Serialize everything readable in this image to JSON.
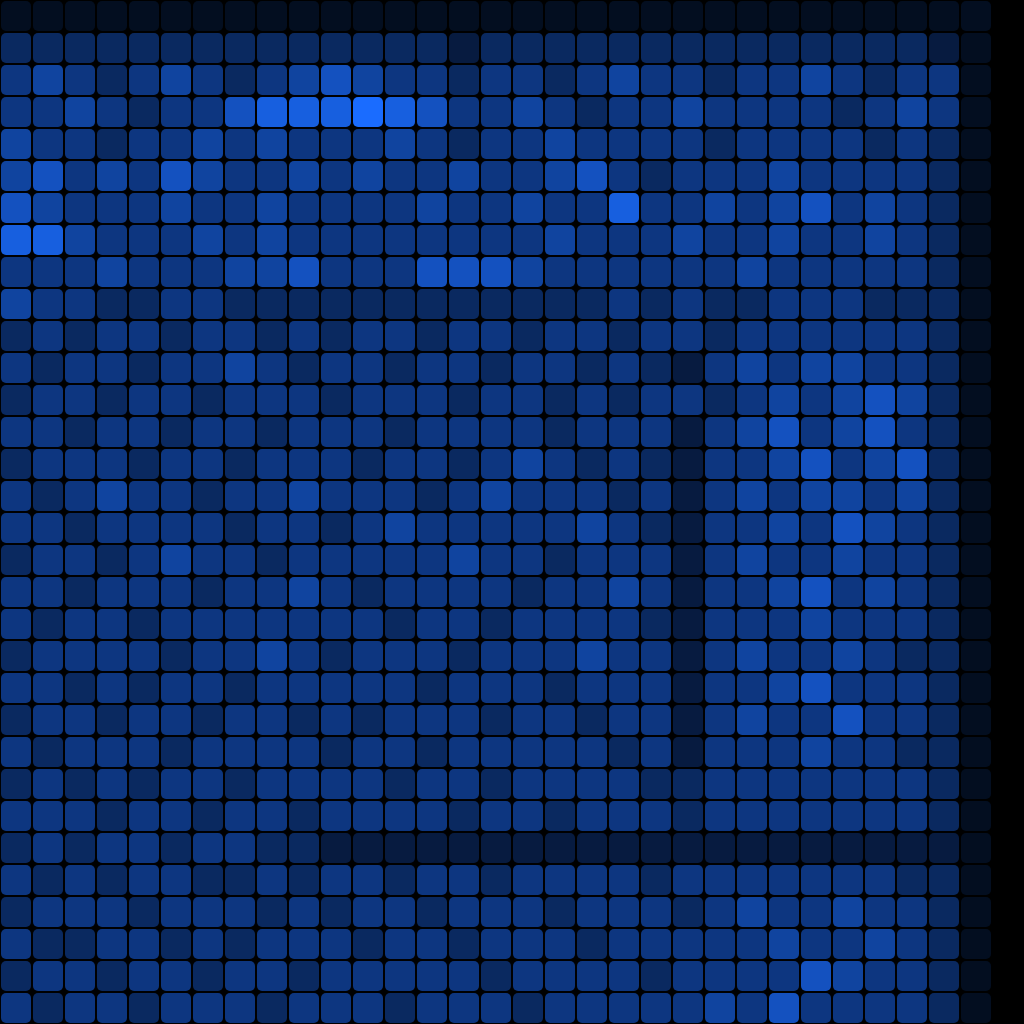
{
  "chart_data": {
    "type": "heatmap",
    "tick_labels": false,
    "cells": [
      [
        1,
        1,
        1,
        1,
        1,
        1,
        1,
        1,
        1,
        1,
        1,
        1,
        1,
        1,
        1,
        1,
        1,
        1,
        1,
        1,
        1,
        1,
        1,
        1,
        1,
        1,
        1,
        1,
        1,
        1,
        1,
        0
      ],
      [
        3,
        3,
        3,
        3,
        3,
        3,
        3,
        3,
        3,
        3,
        3,
        3,
        3,
        3,
        2,
        3,
        3,
        3,
        3,
        3,
        3,
        3,
        3,
        3,
        3,
        3,
        3,
        3,
        3,
        2,
        1,
        0
      ],
      [
        4,
        5,
        4,
        3,
        4,
        5,
        4,
        3,
        4,
        5,
        6,
        5,
        4,
        4,
        3,
        4,
        4,
        3,
        4,
        5,
        4,
        4,
        3,
        4,
        4,
        5,
        4,
        3,
        4,
        4,
        1,
        0
      ],
      [
        4,
        4,
        5,
        4,
        3,
        4,
        4,
        6,
        7,
        7,
        7,
        8,
        7,
        6,
        4,
        4,
        5,
        4,
        3,
        4,
        4,
        5,
        4,
        4,
        4,
        4,
        3,
        4,
        5,
        4,
        1,
        0
      ],
      [
        5,
        4,
        4,
        3,
        4,
        4,
        5,
        4,
        5,
        4,
        4,
        4,
        5,
        4,
        3,
        4,
        4,
        5,
        4,
        4,
        4,
        4,
        3,
        4,
        4,
        4,
        4,
        3,
        4,
        3,
        1,
        0
      ],
      [
        5,
        6,
        4,
        5,
        4,
        6,
        5,
        4,
        4,
        5,
        4,
        5,
        4,
        4,
        5,
        4,
        4,
        5,
        6,
        4,
        3,
        4,
        4,
        4,
        5,
        4,
        4,
        4,
        4,
        3,
        1,
        0
      ],
      [
        6,
        5,
        4,
        4,
        4,
        5,
        4,
        4,
        5,
        4,
        4,
        4,
        4,
        5,
        4,
        4,
        5,
        4,
        4,
        7,
        4,
        4,
        5,
        4,
        5,
        6,
        4,
        5,
        4,
        3,
        1,
        0
      ],
      [
        7,
        7,
        5,
        4,
        4,
        4,
        5,
        4,
        5,
        4,
        4,
        4,
        4,
        4,
        4,
        4,
        4,
        5,
        4,
        4,
        4,
        5,
        4,
        4,
        5,
        4,
        4,
        5,
        4,
        3,
        1,
        0
      ],
      [
        4,
        4,
        4,
        5,
        4,
        4,
        4,
        5,
        5,
        6,
        4,
        4,
        4,
        6,
        6,
        6,
        5,
        4,
        4,
        4,
        4,
        4,
        4,
        5,
        4,
        4,
        4,
        4,
        4,
        3,
        1,
        0
      ],
      [
        5,
        4,
        4,
        3,
        3,
        4,
        4,
        3,
        3,
        3,
        3,
        3,
        3,
        3,
        3,
        3,
        3,
        3,
        3,
        4,
        3,
        4,
        3,
        3,
        4,
        4,
        4,
        3,
        3,
        3,
        1,
        0
      ],
      [
        3,
        4,
        3,
        4,
        4,
        3,
        4,
        4,
        3,
        4,
        3,
        4,
        4,
        3,
        4,
        4,
        3,
        4,
        4,
        3,
        4,
        4,
        3,
        4,
        4,
        4,
        4,
        4,
        4,
        3,
        1,
        0
      ],
      [
        4,
        3,
        4,
        4,
        3,
        4,
        4,
        5,
        4,
        3,
        4,
        4,
        3,
        4,
        4,
        3,
        4,
        4,
        3,
        4,
        3,
        2,
        4,
        5,
        4,
        5,
        5,
        4,
        4,
        3,
        1,
        0
      ],
      [
        3,
        4,
        4,
        3,
        4,
        4,
        3,
        4,
        4,
        4,
        3,
        4,
        4,
        4,
        3,
        4,
        4,
        3,
        4,
        3,
        4,
        4,
        3,
        4,
        5,
        4,
        5,
        6,
        5,
        3,
        1,
        0
      ],
      [
        4,
        4,
        3,
        4,
        4,
        3,
        4,
        4,
        3,
        4,
        4,
        4,
        3,
        4,
        4,
        4,
        4,
        3,
        4,
        4,
        4,
        2,
        4,
        5,
        6,
        4,
        5,
        6,
        4,
        3,
        1,
        0
      ],
      [
        3,
        4,
        4,
        4,
        3,
        4,
        4,
        3,
        4,
        4,
        4,
        3,
        4,
        4,
        3,
        4,
        5,
        4,
        3,
        4,
        3,
        2,
        4,
        4,
        5,
        6,
        4,
        5,
        6,
        3,
        1,
        0
      ],
      [
        4,
        3,
        4,
        5,
        4,
        4,
        3,
        4,
        4,
        5,
        4,
        4,
        4,
        3,
        4,
        5,
        4,
        4,
        4,
        3,
        4,
        2,
        4,
        5,
        4,
        5,
        5,
        4,
        5,
        3,
        1,
        0
      ],
      [
        4,
        4,
        3,
        4,
        4,
        4,
        4,
        3,
        4,
        4,
        3,
        4,
        5,
        4,
        4,
        4,
        4,
        4,
        5,
        4,
        3,
        2,
        4,
        4,
        5,
        4,
        6,
        5,
        4,
        3,
        1,
        0
      ],
      [
        3,
        4,
        4,
        3,
        4,
        5,
        4,
        4,
        3,
        4,
        4,
        4,
        4,
        4,
        5,
        4,
        4,
        3,
        4,
        4,
        4,
        2,
        4,
        5,
        4,
        4,
        5,
        4,
        4,
        3,
        1,
        0
      ],
      [
        4,
        4,
        3,
        4,
        4,
        4,
        3,
        4,
        4,
        5,
        4,
        3,
        4,
        4,
        4,
        4,
        3,
        4,
        4,
        5,
        4,
        2,
        4,
        4,
        5,
        6,
        4,
        5,
        4,
        3,
        1,
        0
      ],
      [
        4,
        3,
        4,
        4,
        3,
        4,
        4,
        4,
        4,
        4,
        4,
        4,
        3,
        4,
        4,
        3,
        4,
        4,
        4,
        4,
        3,
        2,
        4,
        4,
        4,
        5,
        4,
        4,
        4,
        3,
        1,
        0
      ],
      [
        3,
        4,
        4,
        4,
        4,
        3,
        4,
        4,
        5,
        4,
        3,
        4,
        4,
        4,
        3,
        4,
        4,
        4,
        5,
        4,
        4,
        2,
        4,
        5,
        4,
        4,
        5,
        4,
        3,
        3,
        1,
        0
      ],
      [
        4,
        4,
        3,
        4,
        3,
        4,
        4,
        3,
        4,
        4,
        4,
        4,
        4,
        3,
        4,
        4,
        4,
        3,
        4,
        4,
        4,
        2,
        4,
        4,
        5,
        6,
        4,
        4,
        4,
        3,
        1,
        0
      ],
      [
        3,
        4,
        4,
        3,
        4,
        4,
        3,
        4,
        4,
        3,
        4,
        3,
        4,
        4,
        4,
        3,
        4,
        4,
        3,
        4,
        4,
        2,
        4,
        5,
        4,
        4,
        6,
        4,
        4,
        3,
        1,
        0
      ],
      [
        4,
        3,
        4,
        4,
        4,
        3,
        4,
        4,
        4,
        4,
        3,
        4,
        4,
        3,
        4,
        4,
        4,
        4,
        4,
        3,
        4,
        2,
        4,
        4,
        4,
        5,
        4,
        4,
        3,
        3,
        1,
        0
      ],
      [
        3,
        4,
        3,
        4,
        3,
        4,
        4,
        3,
        4,
        4,
        4,
        4,
        3,
        4,
        4,
        3,
        4,
        4,
        4,
        4,
        3,
        3,
        4,
        4,
        4,
        4,
        4,
        4,
        4,
        3,
        1,
        0
      ],
      [
        4,
        4,
        4,
        3,
        4,
        4,
        3,
        4,
        4,
        3,
        4,
        4,
        4,
        4,
        3,
        4,
        4,
        3,
        4,
        4,
        4,
        3,
        4,
        4,
        4,
        4,
        4,
        4,
        4,
        3,
        1,
        0
      ],
      [
        3,
        4,
        3,
        4,
        4,
        3,
        4,
        4,
        3,
        3,
        2,
        2,
        2,
        2,
        2,
        2,
        2,
        2,
        2,
        2,
        2,
        2,
        2,
        2,
        2,
        2,
        2,
        2,
        2,
        2,
        1,
        0
      ],
      [
        4,
        3,
        4,
        3,
        4,
        4,
        3,
        3,
        4,
        3,
        4,
        4,
        3,
        4,
        4,
        3,
        4,
        4,
        4,
        4,
        3,
        4,
        4,
        4,
        4,
        4,
        4,
        4,
        3,
        3,
        1,
        0
      ],
      [
        3,
        4,
        4,
        4,
        3,
        4,
        4,
        4,
        3,
        4,
        3,
        4,
        4,
        3,
        4,
        4,
        4,
        3,
        4,
        4,
        4,
        3,
        4,
        5,
        4,
        4,
        5,
        4,
        4,
        3,
        1,
        0
      ],
      [
        4,
        3,
        3,
        4,
        4,
        3,
        4,
        3,
        4,
        4,
        4,
        3,
        4,
        4,
        3,
        4,
        4,
        4,
        3,
        4,
        4,
        4,
        4,
        4,
        5,
        4,
        4,
        5,
        4,
        3,
        1,
        0
      ],
      [
        3,
        4,
        4,
        3,
        4,
        4,
        3,
        4,
        4,
        3,
        4,
        4,
        4,
        4,
        4,
        3,
        4,
        4,
        4,
        4,
        3,
        4,
        4,
        4,
        4,
        6,
        5,
        4,
        4,
        3,
        1,
        0
      ],
      [
        4,
        3,
        4,
        4,
        3,
        4,
        4,
        4,
        3,
        4,
        4,
        4,
        3,
        4,
        4,
        4,
        3,
        4,
        4,
        4,
        4,
        4,
        5,
        4,
        6,
        4,
        4,
        4,
        4,
        3,
        1,
        0
      ]
    ]
  }
}
